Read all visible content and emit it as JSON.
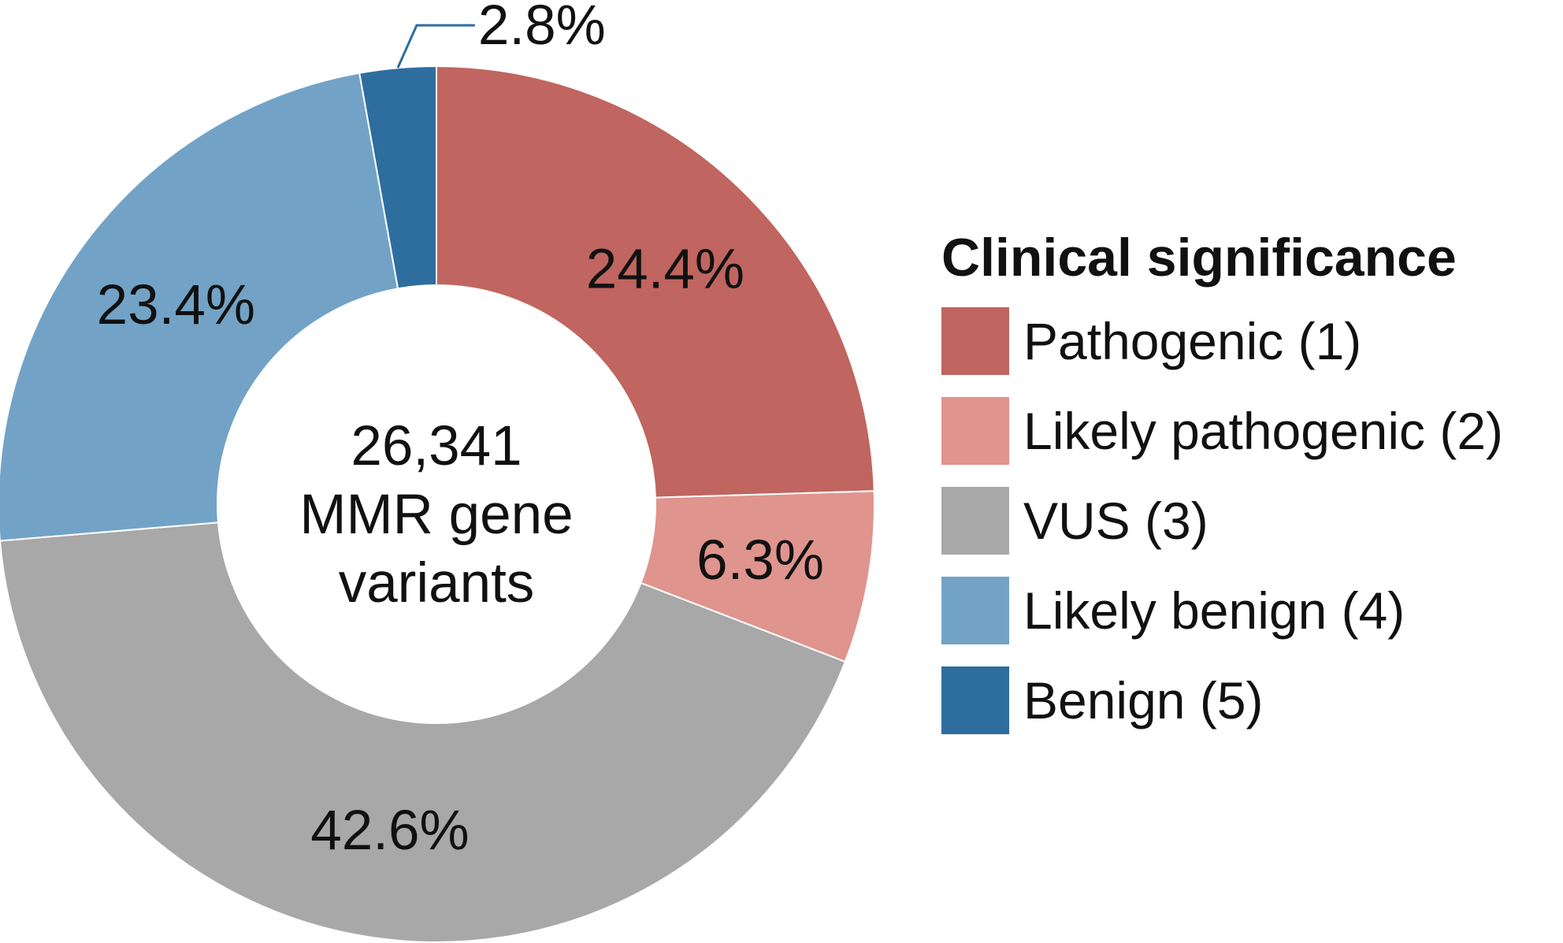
{
  "chart_data": {
    "type": "pie",
    "variant": "donut",
    "center_text": {
      "line1": "26,341",
      "line2": "MMR gene",
      "line3": "variants"
    },
    "categories": [
      "Pathogenic (1)",
      "Likely pathogenic (2)",
      "VUS (3)",
      "Likely benign (4)",
      "Benign (5)"
    ],
    "values": [
      24.4,
      6.3,
      42.6,
      23.4,
      2.8
    ],
    "value_labels": [
      "24.4%",
      "6.3%",
      "42.6%",
      "23.4%",
      "2.8%"
    ],
    "colors": [
      "#c0655f",
      "#e0948e",
      "#a8a8a8",
      "#72a3c6",
      "#2e6e9e"
    ],
    "start_angle": "12 o'clock, clockwise",
    "legend": {
      "title": "Clinical significance",
      "position": "right"
    }
  }
}
